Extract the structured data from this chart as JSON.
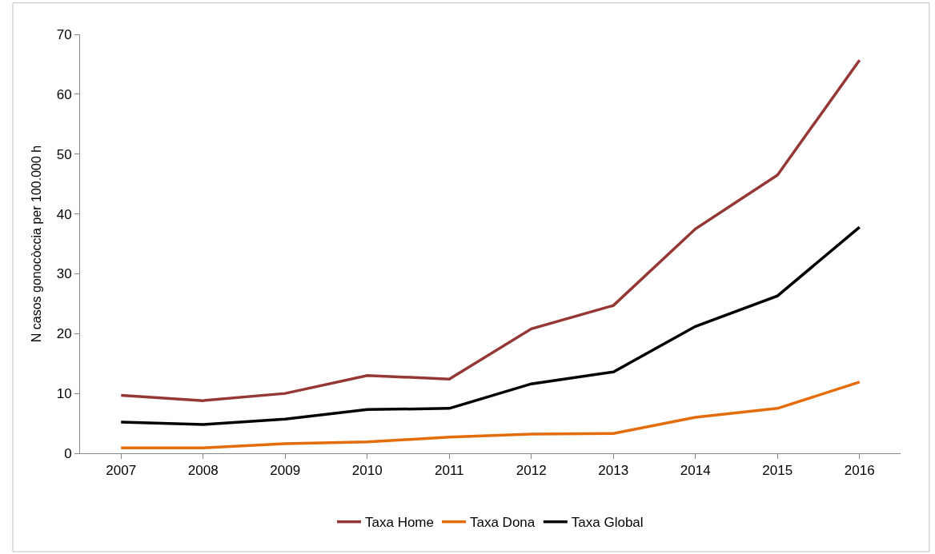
{
  "chart_data": {
    "type": "line",
    "ylabel": "N casos gonocòccia per 100.000 h",
    "categories": [
      "2007",
      "2008",
      "2009",
      "2010",
      "2011",
      "2012",
      "2013",
      "2014",
      "2015",
      "2016"
    ],
    "series": [
      {
        "name": "Taxa Home",
        "color": "#953735",
        "values": [
          9.7,
          8.8,
          10.0,
          13.0,
          12.4,
          20.8,
          24.7,
          37.5,
          46.5,
          65.7
        ]
      },
      {
        "name": "Taxa Dona",
        "color": "#e46c0a",
        "values": [
          0.9,
          0.9,
          1.6,
          1.9,
          2.7,
          3.2,
          3.3,
          6.0,
          7.5,
          11.9
        ]
      },
      {
        "name": "Taxa Global",
        "color": "#000000",
        "values": [
          5.2,
          4.8,
          5.7,
          7.3,
          7.5,
          11.6,
          13.6,
          21.2,
          26.3,
          37.8
        ]
      }
    ],
    "ylim": [
      0,
      70
    ],
    "yticks": [
      0,
      10,
      20,
      30,
      40,
      50,
      60,
      70
    ],
    "grid": false,
    "legend": "bottom",
    "marker": "none",
    "line_style": "solid"
  }
}
